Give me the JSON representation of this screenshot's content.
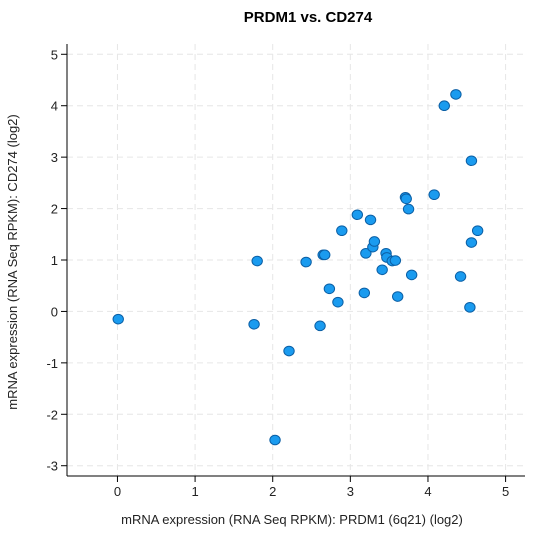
{
  "chart_data": {
    "type": "scatter",
    "title": "PRDM1 vs. CD274",
    "xlabel": "mRNA expression (RNA Seq RPKM): PRDM1 (6q21) (log2)",
    "ylabel": "mRNA expression (RNA Seq RPKM): CD274 (log2)",
    "xlim": [
      -0.65,
      5.25
    ],
    "ylim": [
      -3.2,
      5.2
    ],
    "xticks": [
      "0",
      "1",
      "2",
      "3",
      "4",
      "5"
    ],
    "yticks": [
      "5",
      "4",
      "3",
      "2",
      "1",
      "0",
      "-1",
      "-2",
      "-3"
    ],
    "xtick_values": [
      0,
      1,
      2,
      3,
      4,
      5
    ],
    "ytick_values": [
      5,
      4,
      3,
      2,
      1,
      0,
      -1,
      -2,
      -3
    ],
    "grid": true,
    "point_color": "#1a9bef",
    "point_stroke": "#0b5fa5",
    "points": [
      {
        "x": 0.01,
        "y": -0.15
      },
      {
        "x": 1.76,
        "y": -0.25
      },
      {
        "x": 1.8,
        "y": 0.98
      },
      {
        "x": 2.03,
        "y": -2.5
      },
      {
        "x": 2.21,
        "y": -0.77
      },
      {
        "x": 2.43,
        "y": 0.96
      },
      {
        "x": 2.61,
        "y": -0.28
      },
      {
        "x": 2.65,
        "y": 1.1
      },
      {
        "x": 2.67,
        "y": 1.1
      },
      {
        "x": 2.73,
        "y": 0.44
      },
      {
        "x": 2.84,
        "y": 0.18
      },
      {
        "x": 2.89,
        "y": 1.57
      },
      {
        "x": 3.09,
        "y": 1.88
      },
      {
        "x": 3.18,
        "y": 0.36
      },
      {
        "x": 3.2,
        "y": 1.13
      },
      {
        "x": 3.26,
        "y": 1.78
      },
      {
        "x": 3.29,
        "y": 1.25
      },
      {
        "x": 3.31,
        "y": 1.36
      },
      {
        "x": 3.41,
        "y": 0.81
      },
      {
        "x": 3.46,
        "y": 1.13
      },
      {
        "x": 3.47,
        "y": 1.05
      },
      {
        "x": 3.54,
        "y": 0.98
      },
      {
        "x": 3.58,
        "y": 0.99
      },
      {
        "x": 3.61,
        "y": 0.29
      },
      {
        "x": 3.71,
        "y": 2.22
      },
      {
        "x": 3.72,
        "y": 2.19
      },
      {
        "x": 3.75,
        "y": 1.99
      },
      {
        "x": 3.79,
        "y": 0.71
      },
      {
        "x": 4.08,
        "y": 2.27
      },
      {
        "x": 4.21,
        "y": 4.0
      },
      {
        "x": 4.36,
        "y": 4.22
      },
      {
        "x": 4.42,
        "y": 0.68
      },
      {
        "x": 4.54,
        "y": 0.08
      },
      {
        "x": 4.56,
        "y": 2.93
      },
      {
        "x": 4.56,
        "y": 1.34
      },
      {
        "x": 4.64,
        "y": 1.57
      }
    ]
  }
}
